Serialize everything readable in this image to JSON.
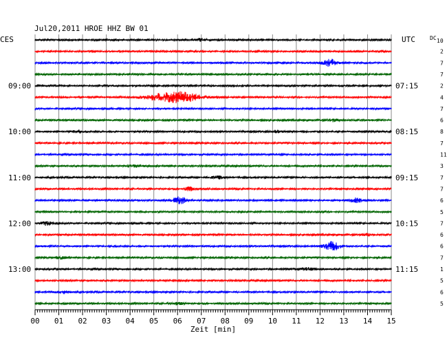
{
  "chart_data": {
    "type": "line",
    "title": "Jul20,2011   HROE HHZ BW 01",
    "xlabel": "Zeit [min]",
    "x_ticks": [
      "00",
      "01",
      "02",
      "03",
      "04",
      "05",
      "06",
      "07",
      "08",
      "09",
      "10",
      "11",
      "12",
      "13",
      "14",
      "15"
    ],
    "xlim": [
      0,
      15
    ],
    "left_axis_label": "CES",
    "right_axis_label": "UTC",
    "dc_label": "DC",
    "dc_first": "10",
    "left_time_labels": [
      {
        "row": 4,
        "text": "09:00"
      },
      {
        "row": 8,
        "text": "10:00"
      },
      {
        "row": 12,
        "text": "11:00"
      },
      {
        "row": 16,
        "text": "12:00"
      },
      {
        "row": 20,
        "text": "13:00"
      }
    ],
    "right_time_labels": [
      {
        "row": 4,
        "text": "07:15"
      },
      {
        "row": 8,
        "text": "08:15"
      },
      {
        "row": 12,
        "text": "09:15"
      },
      {
        "row": 16,
        "text": "10:15"
      },
      {
        "row": 20,
        "text": "11:15"
      }
    ],
    "dc_values": [
      "",
      "2",
      "7",
      "7",
      "2",
      "4",
      "7",
      "6",
      "8",
      "7",
      "11",
      "3",
      "7",
      "7",
      "6",
      "5",
      "7",
      "6",
      "6",
      "7",
      "1",
      "5",
      "6",
      "5"
    ],
    "trace_colors": [
      "#000000",
      "#ff0000",
      "#0000ff",
      "#006400"
    ],
    "series": [
      {
        "events": [
          {
            "t": 7.0,
            "a": 2.0,
            "w": 0.2
          }
        ]
      },
      {
        "events": []
      },
      {
        "events": [
          {
            "t": 12.4,
            "a": 5.5,
            "w": 0.3
          }
        ]
      },
      {
        "events": []
      },
      {
        "events": []
      },
      {
        "events": [
          {
            "t": 5.6,
            "a": 5.0,
            "w": 1.0
          },
          {
            "t": 6.3,
            "a": 4.0,
            "w": 0.8
          }
        ]
      },
      {
        "events": []
      },
      {
        "events": [
          {
            "t": 12.6,
            "a": 2.0,
            "w": 0.2
          }
        ]
      },
      {
        "events": [
          {
            "t": 1.8,
            "a": 1.8,
            "w": 0.2
          },
          {
            "t": 10.2,
            "a": 1.8,
            "w": 0.2
          }
        ]
      },
      {
        "events": []
      },
      {
        "events": []
      },
      {
        "events": [
          {
            "t": 4.2,
            "a": 1.6,
            "w": 0.4
          }
        ]
      },
      {
        "events": [
          {
            "t": 7.7,
            "a": 1.8,
            "w": 0.3
          }
        ]
      },
      {
        "events": [
          {
            "t": 6.5,
            "a": 2.5,
            "w": 0.2
          }
        ]
      },
      {
        "events": [
          {
            "t": 6.1,
            "a": 5.0,
            "w": 0.3
          },
          {
            "t": 13.5,
            "a": 3.0,
            "w": 0.3
          }
        ]
      },
      {
        "events": []
      },
      {
        "events": [
          {
            "t": 0.5,
            "a": 3.0,
            "w": 0.2
          }
        ]
      },
      {
        "events": [
          {
            "t": 14.0,
            "a": 1.8,
            "w": 0.2
          }
        ]
      },
      {
        "events": [
          {
            "t": 12.5,
            "a": 6.5,
            "w": 0.35
          }
        ]
      },
      {
        "events": [
          {
            "t": 1.1,
            "a": 1.8,
            "w": 0.2
          }
        ]
      },
      {
        "events": [
          {
            "t": 11.4,
            "a": 1.6,
            "w": 0.6
          }
        ]
      },
      {
        "events": []
      },
      {
        "events": [
          {
            "t": 1.2,
            "a": 2.0,
            "w": 0.3
          }
        ]
      },
      {
        "events": [
          {
            "t": 6.0,
            "a": 1.5,
            "w": 0.3
          }
        ]
      }
    ]
  }
}
